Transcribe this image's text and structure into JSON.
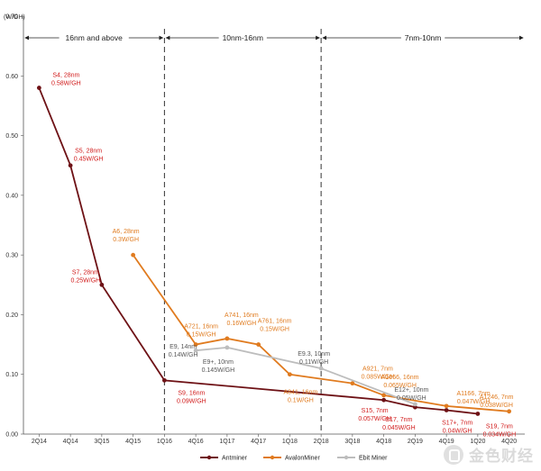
{
  "chart_data": {
    "type": "line",
    "title": "",
    "xlabel": "",
    "ylabel": "(W/GH)",
    "ylim": [
      0,
      0.7
    ],
    "yticks": [
      "0.00",
      "0.10",
      "0.20",
      "0.30",
      "0.40",
      "0.50",
      "0.60",
      "0.70"
    ],
    "categories": [
      "2Q14",
      "4Q14",
      "3Q15",
      "4Q15",
      "1Q16",
      "4Q16",
      "1Q17",
      "4Q17",
      "1Q18",
      "2Q18",
      "3Q18",
      "4Q18",
      "2Q19",
      "4Q19",
      "1Q20",
      "4Q20"
    ],
    "eras": [
      {
        "label": "16nm and above",
        "from": "2Q14",
        "to": "1Q16"
      },
      {
        "label": "10nm-16nm",
        "from": "1Q16",
        "to": "2Q18"
      },
      {
        "label": "7nm-10nm",
        "from": "2Q18",
        "to": "4Q20"
      }
    ],
    "era_boundaries": [
      "1Q16",
      "2Q18"
    ],
    "legend_position": "bottom",
    "series": [
      {
        "name": "Antminer",
        "color": "#6e1216",
        "label_color": "#d11a1a",
        "points": [
          {
            "x": "2Q14",
            "y": 0.58,
            "label": [
              "S4, 28nm",
              "0.58W/GH"
            ]
          },
          {
            "x": "4Q14",
            "y": 0.45,
            "label": [
              "S5, 28nm",
              "0.45W/GH"
            ]
          },
          {
            "x": "3Q15",
            "y": 0.25,
            "label": [
              "S7, 28nm",
              "0.25W/GH"
            ]
          },
          {
            "x": "1Q16",
            "y": 0.09,
            "label": [
              "S9, 16nm",
              "0.09W/GH"
            ]
          },
          {
            "x": "4Q18",
            "y": 0.057,
            "label": [
              "S15, 7nm",
              "0.057W/GH"
            ]
          },
          {
            "x": "2Q19",
            "y": 0.045,
            "label": [
              "S17, 7nm",
              "0.045W/GH"
            ]
          },
          {
            "x": "4Q19",
            "y": 0.04,
            "label": [
              "S17+, 7nm",
              "0.04W/GH"
            ]
          },
          {
            "x": "1Q20",
            "y": 0.034,
            "label": [
              "S19, 7nm",
              "0.034W/GH"
            ]
          }
        ]
      },
      {
        "name": "AvalonMiner",
        "color": "#e07b1f",
        "label_color": "#e07b1f",
        "points": [
          {
            "x": "4Q15",
            "y": 0.3,
            "label": [
              "A6, 28nm",
              "0.3W/GH"
            ]
          },
          {
            "x": "4Q16",
            "y": 0.15,
            "label": [
              "A721, 16nm",
              "0.15W/GH"
            ]
          },
          {
            "x": "1Q17",
            "y": 0.16,
            "label": [
              "A741, 16nm",
              "0.16W/GH"
            ]
          },
          {
            "x": "4Q17",
            "y": 0.15,
            "label": [
              "A761, 16nm",
              "0.15W/GH"
            ]
          },
          {
            "x": "1Q18",
            "y": 0.1,
            "label": [
              "A841, 16nm",
              "0.1W/GH"
            ]
          },
          {
            "x": "3Q18",
            "y": 0.085,
            "label": [
              "A921, 7nm",
              "0.085W/GH"
            ]
          },
          {
            "x": "4Q18",
            "y": 0.065,
            "label": [
              "A1066, 16nm",
              "0.065W/GH"
            ]
          },
          {
            "x": "4Q19",
            "y": 0.047,
            "label": [
              "A1166, 7nm",
              "0.047W/GH"
            ]
          },
          {
            "x": "4Q20",
            "y": 0.038,
            "label": [
              "A1246, 7nm",
              "0.038W/GH"
            ]
          }
        ]
      },
      {
        "name": "Ebit Miner",
        "color": "#bdbdbd",
        "label_color": "#555555",
        "points": [
          {
            "x": "4Q16",
            "y": 0.14,
            "label": [
              "E9, 14nm",
              "0.14W/GH"
            ]
          },
          {
            "x": "1Q17",
            "y": 0.145,
            "label": [
              "E9+, 10nm",
              "0.145W/GH"
            ]
          },
          {
            "x": "2Q18",
            "y": 0.11,
            "label": [
              "E9.3, 10nm",
              "0.11W/GH"
            ]
          },
          {
            "x": "2Q19",
            "y": 0.05,
            "label": [
              "E12+, 10nm",
              "0.05W/GH"
            ]
          }
        ]
      }
    ]
  },
  "watermark": {
    "text": "金色财经",
    "icon": "jinse-logo-icon"
  }
}
